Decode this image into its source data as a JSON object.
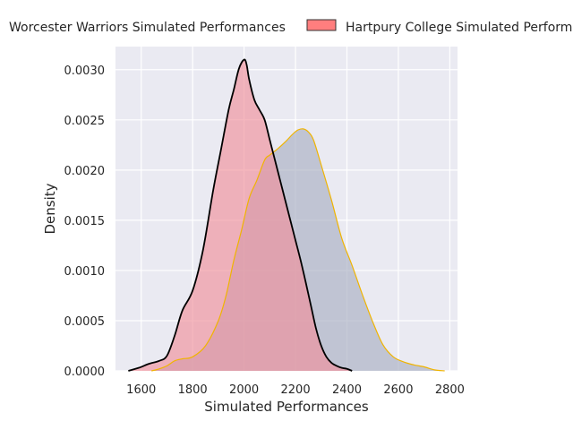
{
  "chart_data": {
    "type": "area",
    "title": "",
    "xlabel": "Simulated Performances",
    "ylabel": "Density",
    "xlim": [
      1500,
      2830
    ],
    "ylim": [
      0,
      0.00323
    ],
    "grid": true,
    "legend_position": "top",
    "x_ticks": [
      1600,
      1800,
      2000,
      2200,
      2400,
      2600,
      2800
    ],
    "x_tick_labels": [
      "1600",
      "1800",
      "2000",
      "2200",
      "2400",
      "2600",
      "2800"
    ],
    "y_ticks": [
      0,
      0.0005,
      0.001,
      0.0015,
      0.002,
      0.0025,
      0.003
    ],
    "y_tick_labels": [
      "0.0000",
      "0.0005",
      "0.0010",
      "0.0015",
      "0.0020",
      "0.0025",
      "0.0030"
    ],
    "series": [
      {
        "name": "Worcester Warriors Simulated Performances",
        "fill_color": "#a9afc1",
        "line_color": "#f0b400",
        "legend_swatch": false,
        "x": [
          1640,
          1670,
          1700,
          1730,
          1760,
          1800,
          1850,
          1900,
          1930,
          1960,
          1990,
          2020,
          2050,
          2080,
          2100,
          2130,
          2160,
          2190,
          2210,
          2230,
          2250,
          2270,
          2300,
          2340,
          2380,
          2420,
          2460,
          2500,
          2540,
          2580,
          2620,
          2660,
          2700,
          2740,
          2780
        ],
        "y": [
          0.0,
          2e-05,
          5e-05,
          0.0001,
          0.00012,
          0.00014,
          0.00025,
          0.0005,
          0.00075,
          0.0011,
          0.0014,
          0.00172,
          0.0019,
          0.0021,
          0.00215,
          0.00221,
          0.00228,
          0.00236,
          0.0024,
          0.00241,
          0.00238,
          0.0023,
          0.00205,
          0.0017,
          0.00132,
          0.00105,
          0.00076,
          0.00049,
          0.00026,
          0.00014,
          9e-05,
          6e-05,
          4e-05,
          1e-05,
          0.0
        ]
      },
      {
        "name": "Hartpury College Simulated Performances",
        "fill_color": "#f0919b",
        "line_color": "#000000",
        "legend_swatch": true,
        "x": [
          1550,
          1590,
          1630,
          1670,
          1700,
          1730,
          1760,
          1800,
          1840,
          1880,
          1910,
          1940,
          1960,
          1980,
          2000,
          2010,
          2020,
          2040,
          2060,
          2080,
          2100,
          2120,
          2140,
          2160,
          2180,
          2200,
          2220,
          2240,
          2260,
          2280,
          2300,
          2320,
          2340,
          2360,
          2380,
          2400,
          2420
        ],
        "y": [
          0.0,
          3e-05,
          7e-05,
          0.0001,
          0.00015,
          0.00035,
          0.0006,
          0.0008,
          0.0012,
          0.0018,
          0.0022,
          0.0026,
          0.0028,
          0.00301,
          0.0031,
          0.00305,
          0.0029,
          0.0027,
          0.0026,
          0.0025,
          0.0023,
          0.0021,
          0.0019,
          0.0017,
          0.0015,
          0.0013,
          0.0011,
          0.00088,
          0.00065,
          0.00042,
          0.00025,
          0.00014,
          8e-05,
          5e-05,
          3e-05,
          2e-05,
          0.0
        ]
      }
    ]
  }
}
